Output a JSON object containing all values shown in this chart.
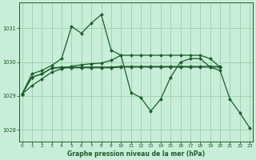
{
  "background_color": "#c8edd8",
  "grid_color": "#90c8a8",
  "line_color": "#1b5e2a",
  "title": "Graphe pression niveau de la mer (hPa)",
  "xlim": [
    -0.3,
    23.3
  ],
  "ylim": [
    1027.65,
    1031.75
  ],
  "yticks": [
    1028,
    1029,
    1030,
    1031
  ],
  "xtick_labels": [
    "0",
    "1",
    "2",
    "3",
    "4",
    "5",
    "6",
    "7",
    "8",
    "9",
    "10",
    "11",
    "12",
    "13",
    "14",
    "15",
    "16",
    "17",
    "18",
    "19",
    "20",
    "21",
    "22",
    "23"
  ],
  "y_line1": [
    1029.05,
    1029.65,
    1029.75,
    1029.9,
    1030.1,
    1031.05,
    1030.85,
    1031.15,
    1031.4,
    1030.35,
    1030.2,
    1029.1,
    1028.95,
    1028.55,
    1028.9,
    1029.55,
    1030.0,
    1030.1,
    1030.1,
    1029.85,
    1029.75,
    1028.9,
    1028.5,
    1028.05
  ],
  "y_line2": [
    1029.05,
    1029.3,
    1029.5,
    1029.7,
    1029.8,
    1029.88,
    1029.92,
    1029.95,
    1029.97,
    1030.05,
    1030.2,
    1030.2,
    1030.2,
    1030.2,
    1030.2,
    1030.2,
    1030.2,
    1030.2,
    1030.2,
    1030.1,
    1029.85,
    null,
    null,
    null
  ],
  "y_line3": [
    1029.05,
    1029.55,
    1029.65,
    1029.82,
    1029.85,
    1029.85,
    1029.85,
    1029.85,
    1029.85,
    1029.85,
    1029.87,
    1029.87,
    1029.87,
    1029.87,
    1029.87,
    1029.87,
    1029.87,
    1029.87,
    1029.87,
    1029.87,
    1029.87,
    null,
    null,
    null
  ],
  "y_line4": [
    1029.05,
    1029.55,
    1029.65,
    1029.82,
    1029.83,
    1029.83,
    1029.83,
    1029.83,
    1029.83,
    1029.83,
    1029.85,
    1029.85,
    1029.85,
    1029.85,
    1029.85,
    1029.85,
    1029.85,
    1029.85,
    1029.85,
    1029.85,
    1029.85,
    null,
    null,
    null
  ]
}
